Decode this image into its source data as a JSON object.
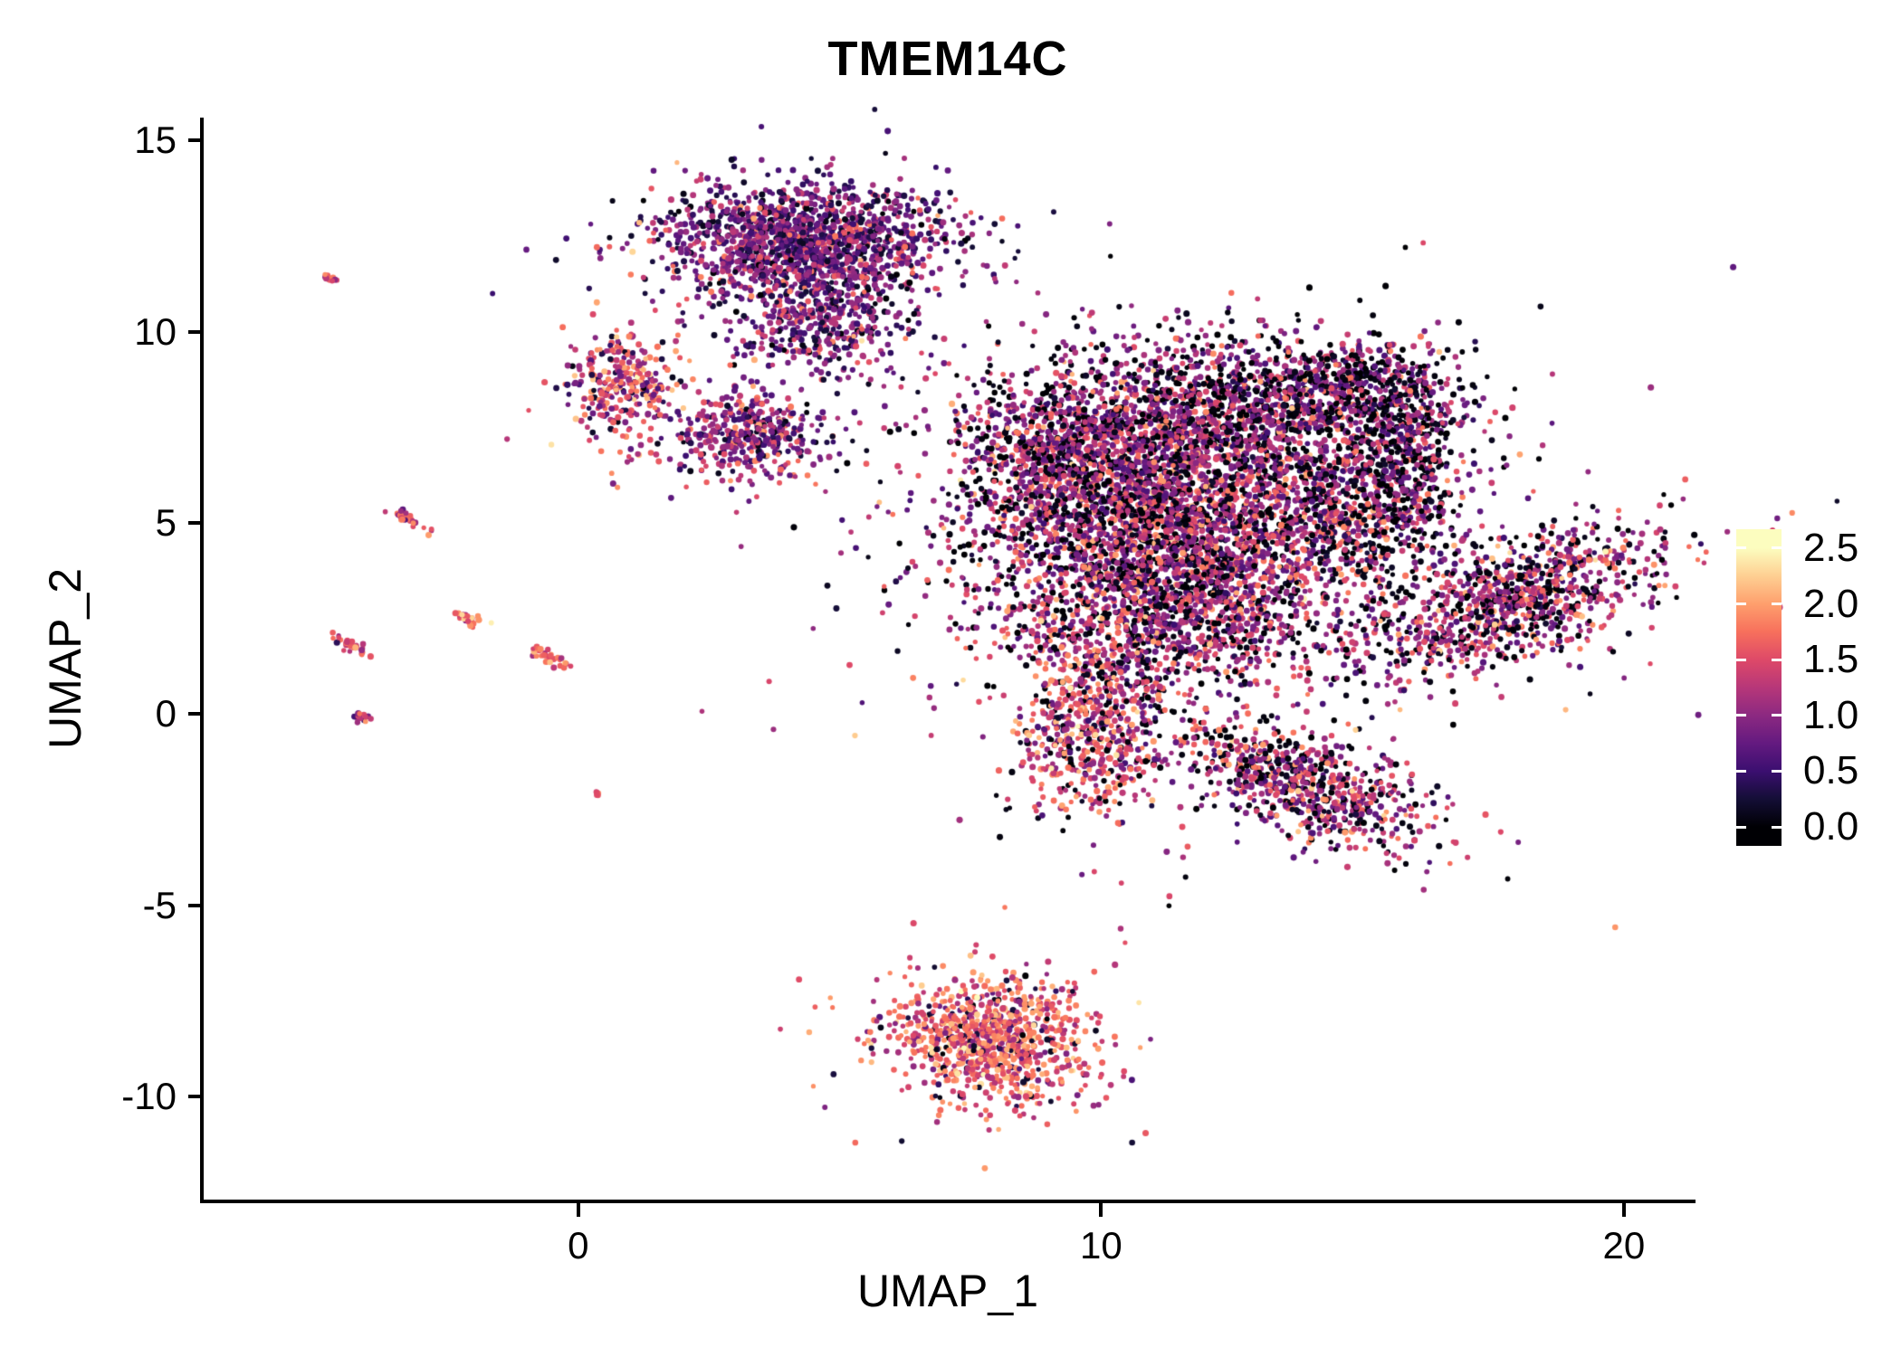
{
  "title": "TMEM14C",
  "chart_data": {
    "type": "scatter",
    "title": "TMEM14C",
    "xlabel": "UMAP_1",
    "ylabel": "UMAP_2",
    "xlim": [
      -7.2,
      21.3
    ],
    "ylim": [
      -12.7,
      15.6
    ],
    "grid": false,
    "background": "#ffffff",
    "axis_color": "#000000",
    "x_ticks": [
      {
        "value": 0,
        "label": "0"
      },
      {
        "value": 10,
        "label": "10"
      },
      {
        "value": 20,
        "label": "20"
      }
    ],
    "y_ticks": [
      {
        "value": -10,
        "label": "-10"
      },
      {
        "value": -5,
        "label": "-5"
      },
      {
        "value": 0,
        "label": "0"
      },
      {
        "value": 5,
        "label": "5"
      },
      {
        "value": 10,
        "label": "10"
      },
      {
        "value": 15,
        "label": "15"
      }
    ],
    "legend": {
      "position": "right",
      "range": [
        0,
        2.5
      ],
      "ticks": [
        {
          "value": 2.5,
          "label": "2.5"
        },
        {
          "value": 2.0,
          "label": "2.0"
        },
        {
          "value": 1.5,
          "label": "1.5"
        },
        {
          "value": 1.0,
          "label": "1.0"
        },
        {
          "value": 0.5,
          "label": "0.5"
        },
        {
          "value": 0.0,
          "label": "0.0"
        }
      ]
    },
    "colormap": {
      "name": "magma",
      "stops": [
        [
          0.0,
          "#000004"
        ],
        [
          0.1,
          "#140e36"
        ],
        [
          0.2,
          "#3b0f70"
        ],
        [
          0.3,
          "#641a80"
        ],
        [
          0.4,
          "#8c2981"
        ],
        [
          0.5,
          "#b73779"
        ],
        [
          0.6,
          "#de4968"
        ],
        [
          0.7,
          "#f7705c"
        ],
        [
          0.8,
          "#fe9f6d"
        ],
        [
          0.9,
          "#fecf92"
        ],
        [
          1.0,
          "#fcfdbf"
        ]
      ]
    },
    "point_radius_px": 3,
    "seed": 42,
    "clusters": [
      {
        "name": "main-core",
        "center": [
          11.5,
          5.4
        ],
        "sd": [
          2.0,
          1.7
        ],
        "rot_deg": 0,
        "n": 3600,
        "expr_mix": [
          [
            0.28,
            0.05,
            0.08
          ],
          [
            0.47,
            1.0,
            0.32
          ],
          [
            0.25,
            1.62,
            0.3
          ]
        ]
      },
      {
        "name": "main-left-arm",
        "center": [
          9.2,
          6.7
        ],
        "sd": [
          1.0,
          1.15
        ],
        "rot_deg": 0,
        "n": 700,
        "expr_mix": [
          [
            0.3,
            0.05,
            0.08
          ],
          [
            0.5,
            0.95,
            0.3
          ],
          [
            0.2,
            1.55,
            0.3
          ]
        ]
      },
      {
        "name": "main-upper",
        "center": [
          12.6,
          8.2
        ],
        "sd": [
          1.5,
          0.9
        ],
        "rot_deg": 0,
        "n": 800,
        "expr_mix": [
          [
            0.35,
            0.05,
            0.08
          ],
          [
            0.45,
            0.9,
            0.3
          ],
          [
            0.2,
            1.5,
            0.28
          ]
        ]
      },
      {
        "name": "main-right-edge",
        "center": [
          15.2,
          5.8
        ],
        "sd": [
          0.85,
          1.4
        ],
        "rot_deg": 0,
        "n": 550,
        "expr_mix": [
          [
            0.45,
            0.06,
            0.08
          ],
          [
            0.4,
            0.9,
            0.3
          ],
          [
            0.15,
            1.5,
            0.25
          ]
        ]
      },
      {
        "name": "main-bottom",
        "center": [
          11.4,
          2.6
        ],
        "sd": [
          1.7,
          1.0
        ],
        "rot_deg": 0,
        "n": 900,
        "expr_mix": [
          [
            0.28,
            0.05,
            0.08
          ],
          [
            0.46,
            1.0,
            0.3
          ],
          [
            0.26,
            1.6,
            0.3
          ]
        ]
      },
      {
        "name": "south-hang",
        "center": [
          9.9,
          -0.4
        ],
        "sd": [
          0.75,
          1.25
        ],
        "rot_deg": 0,
        "n": 650,
        "expr_mix": [
          [
            0.2,
            0.05,
            0.08
          ],
          [
            0.42,
            1.05,
            0.3
          ],
          [
            0.38,
            1.7,
            0.3
          ]
        ]
      },
      {
        "name": "south-diagonal",
        "center": [
          13.8,
          -1.8
        ],
        "sd": [
          1.35,
          0.6
        ],
        "rot_deg": -30,
        "n": 750,
        "expr_mix": [
          [
            0.28,
            0.05,
            0.08
          ],
          [
            0.44,
            1.0,
            0.3
          ],
          [
            0.28,
            1.6,
            0.3
          ]
        ]
      },
      {
        "name": "right-hook",
        "center": [
          15.0,
          8.6
        ],
        "sd": [
          0.95,
          0.55
        ],
        "rot_deg": -15,
        "n": 400,
        "expr_mix": [
          [
            0.4,
            0.05,
            0.08
          ],
          [
            0.45,
            0.9,
            0.3
          ],
          [
            0.15,
            1.5,
            0.25
          ]
        ]
      },
      {
        "name": "right-hook-tail",
        "center": [
          15.9,
          7.0
        ],
        "sd": [
          0.45,
          0.9
        ],
        "rot_deg": 0,
        "n": 220,
        "expr_mix": [
          [
            0.42,
            0.05,
            0.08
          ],
          [
            0.43,
            0.9,
            0.3
          ],
          [
            0.15,
            1.5,
            0.25
          ]
        ]
      },
      {
        "name": "top-cluster",
        "center": [
          4.3,
          12.4
        ],
        "sd": [
          1.35,
          0.72
        ],
        "rot_deg": 0,
        "n": 1500,
        "expr_mix": [
          [
            0.3,
            0.3,
            0.18
          ],
          [
            0.5,
            0.85,
            0.25
          ],
          [
            0.2,
            1.45,
            0.28
          ]
        ]
      },
      {
        "name": "top-cluster-south",
        "center": [
          4.6,
          10.4
        ],
        "sd": [
          0.8,
          0.75
        ],
        "rot_deg": 0,
        "n": 450,
        "expr_mix": [
          [
            0.3,
            0.3,
            0.18
          ],
          [
            0.5,
            0.85,
            0.25
          ],
          [
            0.2,
            1.45,
            0.28
          ]
        ]
      },
      {
        "name": "mid-left-small",
        "center": [
          3.3,
          7.3
        ],
        "sd": [
          0.72,
          0.62
        ],
        "rot_deg": 0,
        "n": 420,
        "expr_mix": [
          [
            0.25,
            0.35,
            0.2
          ],
          [
            0.5,
            0.9,
            0.25
          ],
          [
            0.25,
            1.5,
            0.3
          ]
        ]
      },
      {
        "name": "left-blob",
        "center": [
          0.9,
          8.6
        ],
        "sd": [
          0.5,
          0.75
        ],
        "rot_deg": 0,
        "n": 300,
        "expr_mix": [
          [
            0.15,
            0.3,
            0.15
          ],
          [
            0.4,
            1.1,
            0.3
          ],
          [
            0.45,
            1.7,
            0.3
          ]
        ]
      },
      {
        "name": "right-wing",
        "center": [
          17.8,
          2.9
        ],
        "sd": [
          1.45,
          0.68
        ],
        "rot_deg": 27,
        "n": 950,
        "expr_mix": [
          [
            0.3,
            0.05,
            0.08
          ],
          [
            0.44,
            1.0,
            0.3
          ],
          [
            0.26,
            1.6,
            0.3
          ]
        ]
      },
      {
        "name": "bottom-island",
        "center": [
          7.9,
          -8.5
        ],
        "sd": [
          0.95,
          0.78
        ],
        "rot_deg": -18,
        "n": 950,
        "expr_mix": [
          [
            0.1,
            0.2,
            0.12
          ],
          [
            0.35,
            1.3,
            0.3
          ],
          [
            0.55,
            1.8,
            0.3
          ]
        ]
      },
      {
        "name": "streak-a",
        "center": [
          -4.75,
          11.4
        ],
        "sd": [
          0.08,
          0.04
        ],
        "rot_deg": -35,
        "n": 10,
        "expr_mix": [
          [
            0.3,
            1.2,
            0.2
          ],
          [
            0.7,
            1.7,
            0.25
          ]
        ]
      },
      {
        "name": "streak-b",
        "center": [
          -3.25,
          5.1
        ],
        "sd": [
          0.2,
          0.06
        ],
        "rot_deg": -35,
        "n": 32,
        "expr_mix": [
          [
            0.35,
            1.1,
            0.25
          ],
          [
            0.65,
            1.7,
            0.25
          ]
        ]
      },
      {
        "name": "streak-c",
        "center": [
          -2.1,
          2.5
        ],
        "sd": [
          0.13,
          0.07
        ],
        "rot_deg": -35,
        "n": 26,
        "expr_mix": [
          [
            0.2,
            1.3,
            0.2
          ],
          [
            0.8,
            1.9,
            0.25
          ]
        ]
      },
      {
        "name": "streak-d",
        "center": [
          -4.3,
          1.75
        ],
        "sd": [
          0.22,
          0.06
        ],
        "rot_deg": -35,
        "n": 30,
        "expr_mix": [
          [
            0.4,
            1.1,
            0.25
          ],
          [
            0.6,
            1.6,
            0.25
          ]
        ]
      },
      {
        "name": "streak-e",
        "center": [
          -4.15,
          -0.1
        ],
        "sd": [
          0.1,
          0.06
        ],
        "rot_deg": -35,
        "n": 16,
        "expr_mix": [
          [
            0.5,
            0.9,
            0.3
          ],
          [
            0.5,
            1.6,
            0.25
          ]
        ]
      },
      {
        "name": "streak-f",
        "center": [
          -0.55,
          1.5
        ],
        "sd": [
          0.26,
          0.07
        ],
        "rot_deg": -35,
        "n": 36,
        "expr_mix": [
          [
            0.35,
            1.2,
            0.25
          ],
          [
            0.65,
            1.7,
            0.25
          ]
        ]
      },
      {
        "name": "dot-g",
        "center": [
          0.35,
          -2.1
        ],
        "sd": [
          0.05,
          0.04
        ],
        "rot_deg": 0,
        "n": 6,
        "expr_mix": [
          [
            0.5,
            1.4,
            0.2
          ],
          [
            0.5,
            1.8,
            0.2
          ]
        ]
      }
    ]
  }
}
